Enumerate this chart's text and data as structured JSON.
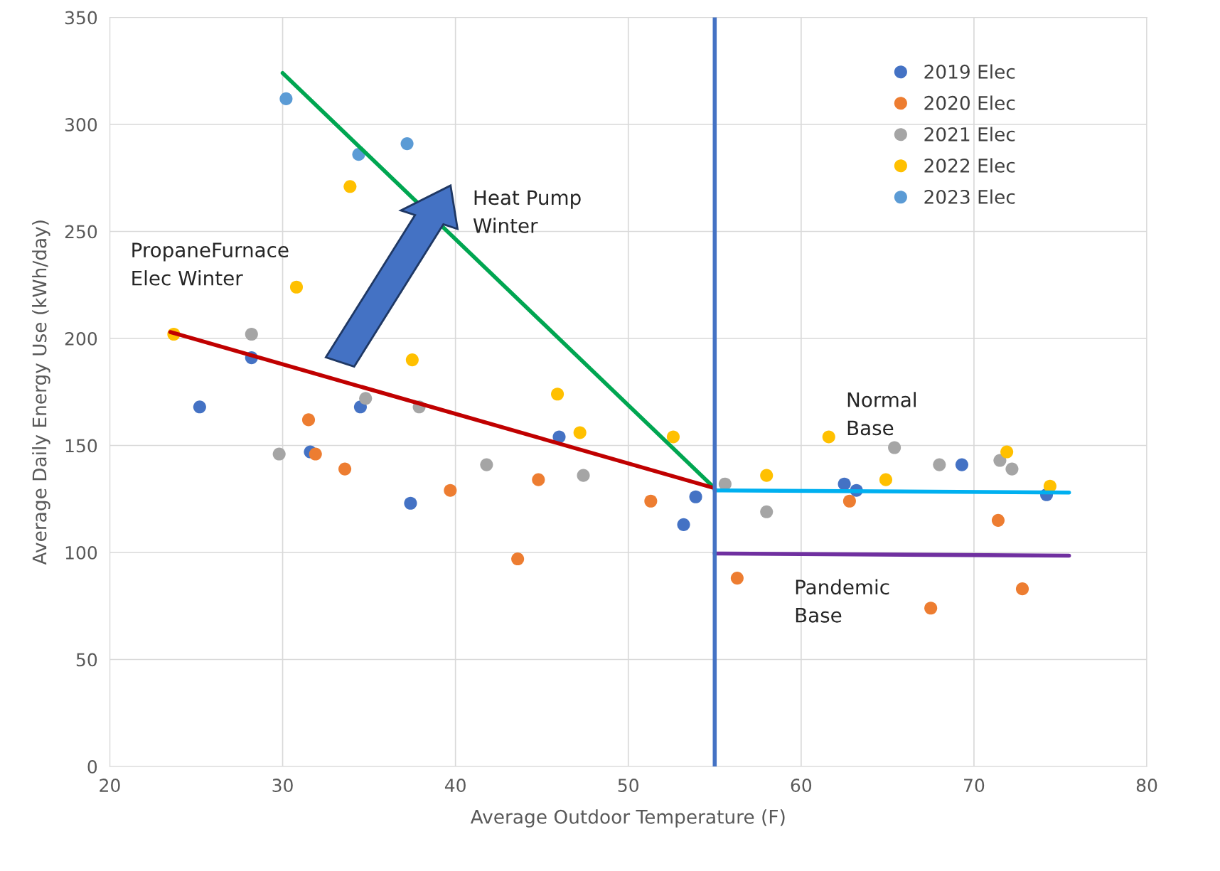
{
  "chart_data": {
    "type": "scatter",
    "xlabel": "Average Outdoor Temperature (F)",
    "ylabel": "Average Daily Energy Use (kWh/day)",
    "xlim": [
      20,
      80
    ],
    "xticks": [
      20,
      30,
      40,
      50,
      60,
      70,
      80
    ],
    "ylim": [
      0,
      350
    ],
    "yticks": [
      0,
      50,
      100,
      150,
      200,
      250,
      300,
      350
    ],
    "grid": true,
    "legend": "top right",
    "series": [
      {
        "name": "2019 Elec",
        "marker": "circle",
        "color": "#4472c4",
        "x": [
          25.2,
          28.2,
          31.6,
          34.5,
          37.4,
          46,
          53.2,
          53.9,
          62.5,
          63.2,
          69.3,
          74.2
        ],
        "values": [
          168,
          191,
          147,
          168,
          123,
          154,
          113,
          126,
          132,
          129,
          141,
          127
        ]
      },
      {
        "name": "2020 Elec",
        "marker": "circle",
        "color": "#ed7d31",
        "x": [
          31.5,
          31.9,
          33.6,
          39.7,
          43.6,
          44.8,
          51.3,
          56.3,
          62.8,
          67.5,
          71.4,
          72.8
        ],
        "values": [
          162,
          146,
          139,
          129,
          97,
          134,
          124,
          88,
          124,
          74,
          115,
          83
        ]
      },
      {
        "name": "2021 Elec",
        "marker": "circle",
        "color": "#a5a5a5",
        "x": [
          28.2,
          29.8,
          34.8,
          37.9,
          41.8,
          47.4,
          55.6,
          58,
          65.4,
          68,
          71.5,
          72.2
        ],
        "values": [
          202,
          146,
          172,
          168,
          141,
          136,
          132,
          119,
          149,
          141,
          143,
          139
        ]
      },
      {
        "name": "2022 Elec",
        "marker": "circle",
        "color": "#ffc000",
        "x": [
          23.7,
          30.8,
          33.9,
          37.5,
          45.9,
          47.2,
          52.6,
          58,
          61.6,
          64.9,
          71.9,
          74.4
        ],
        "values": [
          202,
          224,
          271,
          190,
          174,
          156,
          154,
          136,
          154,
          134,
          147,
          131
        ]
      },
      {
        "name": "2023 Elec",
        "marker": "circle",
        "color": "#5b9bd5",
        "x": [
          30.2,
          34.4,
          37.2
        ],
        "values": [
          312,
          286,
          291
        ]
      },
      {
        "type": "line",
        "color": "#00a651",
        "line_style": "solid",
        "x": [
          30,
          55
        ],
        "values": [
          324,
          130
        ]
      },
      {
        "type": "line",
        "color": "#c00000",
        "line_style": "solid",
        "x": [
          23.5,
          55
        ],
        "values": [
          203,
          130
        ]
      },
      {
        "type": "line",
        "color": "#00b0f0",
        "line_style": "solid",
        "x": [
          55,
          75.5
        ],
        "values": [
          129,
          128
        ]
      },
      {
        "type": "line",
        "color": "#7030a0",
        "line_style": "solid",
        "x": [
          55,
          75.5
        ],
        "values": [
          99.5,
          98.5
        ]
      }
    ],
    "ref_lines": [
      {
        "axis": "x",
        "value": 55,
        "color": "#4472c4",
        "line_style": "solid"
      }
    ],
    "annotations": [
      "PropaneFurnace\nElec Winter",
      "Heat Pump\nWinter",
      "Normal\nBase",
      "Pandemic\nBase"
    ]
  }
}
